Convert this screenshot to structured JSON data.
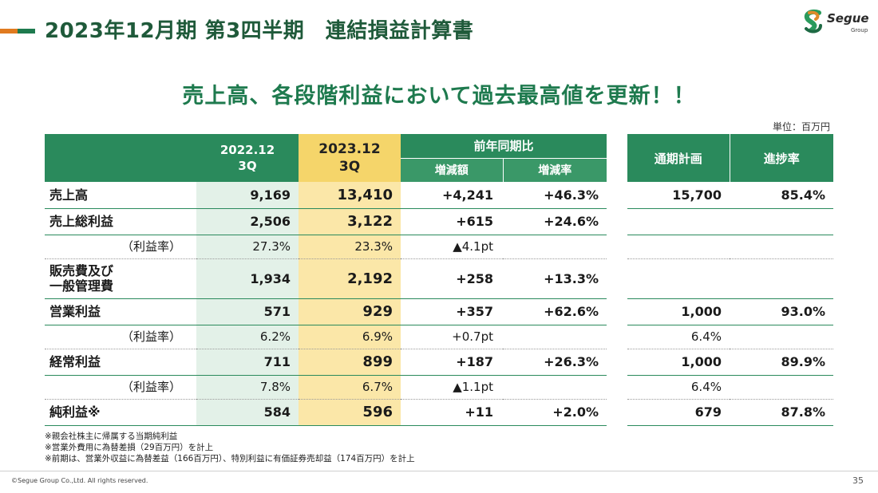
{
  "header": {
    "title": "2023年12月期 第3四半期　連結損益計算書",
    "logo_name": "Segue",
    "logo_sub": "Group"
  },
  "headline": "売上高、各段階利益において過去最高値を更新！！",
  "unit": "単位：百万円",
  "table": {
    "col_prev_line1": "2022.12",
    "col_prev_line2": "3Q",
    "col_cur_line1": "2023.12",
    "col_cur_line2": "3Q",
    "col_yoy": "前年同期比",
    "col_diff": "増減額",
    "col_rate": "増減率",
    "rows": [
      {
        "label": "売上高",
        "prev": "9,169",
        "cur": "13,410",
        "diff": "+4,241",
        "rate": "+46.3%"
      },
      {
        "label": "売上総利益",
        "prev": "2,506",
        "cur": "3,122",
        "diff": "+615",
        "rate": "+24.6%"
      },
      {
        "label": "（利益率）",
        "prev": "27.3%",
        "cur": "23.3%",
        "diff": "▲4.1pt",
        "rate": ""
      },
      {
        "label_line1": "販売費及び",
        "label_line2": "一般管理費",
        "prev": "1,934",
        "cur": "2,192",
        "diff": "+258",
        "rate": "+13.3%"
      },
      {
        "label": "営業利益",
        "prev": "571",
        "cur": "929",
        "diff": "+357",
        "rate": "+62.6%"
      },
      {
        "label": "（利益率）",
        "prev": "6.2%",
        "cur": "6.9%",
        "diff": "+0.7pt",
        "rate": ""
      },
      {
        "label": "経常利益",
        "prev": "711",
        "cur": "899",
        "diff": "+187",
        "rate": "+26.3%"
      },
      {
        "label": "（利益率）",
        "prev": "7.8%",
        "cur": "6.7%",
        "diff": "▲1.1pt",
        "rate": ""
      },
      {
        "label": "純利益※",
        "prev": "584",
        "cur": "596",
        "diff": "+11",
        "rate": "+2.0%"
      }
    ]
  },
  "plan": {
    "col_plan": "通期計画",
    "col_progress": "進捗率",
    "rows": [
      {
        "plan": "15,700",
        "progress": "85.4%"
      },
      {
        "plan": "",
        "progress": ""
      },
      {
        "plan": "",
        "progress": ""
      },
      {
        "plan": "",
        "progress": ""
      },
      {
        "plan": "1,000",
        "progress": "93.0%"
      },
      {
        "plan": "6.4%",
        "progress": ""
      },
      {
        "plan": "1,000",
        "progress": "89.9%"
      },
      {
        "plan": "6.4%",
        "progress": ""
      },
      {
        "plan": "679",
        "progress": "87.8%"
      }
    ]
  },
  "footnotes": [
    "※親会社株主に帰属する当期純利益",
    "※営業外費用に為替差損（29百万円）を計上",
    "※前期は、営業外収益に為替差益（166百万円）、特別利益に有価証券売却益（174百万円）を計上"
  ],
  "footer": {
    "copyright": "©Segue Group Co.,Ltd. All rights reserved.",
    "page": "35"
  },
  "colors": {
    "brand_green": "#2a8a5c",
    "accent_orange": "#e07a1f",
    "highlight_yellow": "#f5d56a"
  }
}
